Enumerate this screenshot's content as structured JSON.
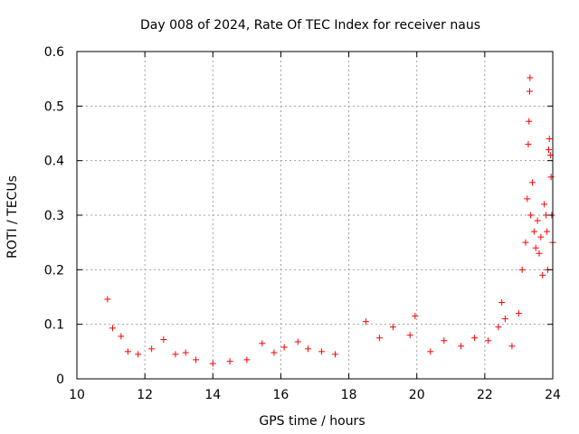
{
  "chart_data": {
    "type": "scatter",
    "title": "Day 008 of 2024, Rate Of TEC Index for receiver naus",
    "xlabel": "GPS time / hours",
    "ylabel": "ROTI / TECUs",
    "xlim": [
      10,
      24
    ],
    "ylim": [
      0,
      0.6
    ],
    "xticks": [
      10,
      12,
      14,
      16,
      18,
      20,
      22,
      24
    ],
    "yticks": [
      0,
      0.1,
      0.2,
      0.3,
      0.4,
      0.5,
      0.6
    ],
    "xtick_labels": [
      "10",
      "12",
      "14",
      "16",
      "18",
      "20",
      "22",
      "24"
    ],
    "ytick_labels": [
      "0",
      "0.1",
      "0.2",
      "0.3",
      "0.4",
      "0.5",
      "0.6"
    ],
    "grid": true,
    "marker": "+",
    "marker_color": "#ff0000",
    "series": [
      {
        "name": "ROTI",
        "points": [
          [
            10.9,
            0.146
          ],
          [
            11.05,
            0.093
          ],
          [
            11.3,
            0.078
          ],
          [
            11.5,
            0.05
          ],
          [
            11.8,
            0.045
          ],
          [
            12.2,
            0.055
          ],
          [
            12.55,
            0.072
          ],
          [
            12.9,
            0.045
          ],
          [
            13.2,
            0.048
          ],
          [
            13.5,
            0.035
          ],
          [
            14.0,
            0.028
          ],
          [
            14.5,
            0.032
          ],
          [
            15.0,
            0.035
          ],
          [
            15.45,
            0.065
          ],
          [
            15.8,
            0.048
          ],
          [
            16.1,
            0.058
          ],
          [
            16.5,
            0.068
          ],
          [
            16.8,
            0.055
          ],
          [
            17.2,
            0.05
          ],
          [
            17.6,
            0.045
          ],
          [
            18.5,
            0.105
          ],
          [
            18.9,
            0.075
          ],
          [
            19.3,
            0.095
          ],
          [
            19.8,
            0.08
          ],
          [
            19.95,
            0.115
          ],
          [
            20.4,
            0.05
          ],
          [
            20.8,
            0.07
          ],
          [
            21.3,
            0.06
          ],
          [
            21.7,
            0.075
          ],
          [
            22.1,
            0.07
          ],
          [
            22.4,
            0.095
          ],
          [
            22.5,
            0.14
          ],
          [
            22.6,
            0.11
          ],
          [
            22.8,
            0.06
          ],
          [
            23.0,
            0.12
          ],
          [
            23.1,
            0.2
          ],
          [
            23.2,
            0.25
          ],
          [
            23.25,
            0.33
          ],
          [
            23.28,
            0.43
          ],
          [
            23.3,
            0.472
          ],
          [
            23.32,
            0.527
          ],
          [
            23.33,
            0.552
          ],
          [
            23.35,
            0.3
          ],
          [
            23.4,
            0.36
          ],
          [
            23.45,
            0.27
          ],
          [
            23.5,
            0.24
          ],
          [
            23.55,
            0.29
          ],
          [
            23.6,
            0.23
          ],
          [
            23.65,
            0.26
          ],
          [
            23.7,
            0.19
          ],
          [
            23.75,
            0.32
          ],
          [
            23.8,
            0.3
          ],
          [
            23.83,
            0.27
          ],
          [
            23.85,
            0.2
          ],
          [
            23.88,
            0.42
          ],
          [
            23.9,
            0.44
          ],
          [
            23.93,
            0.41
          ],
          [
            23.95,
            0.37
          ],
          [
            23.97,
            0.3
          ],
          [
            24.0,
            0.25
          ]
        ]
      }
    ]
  }
}
